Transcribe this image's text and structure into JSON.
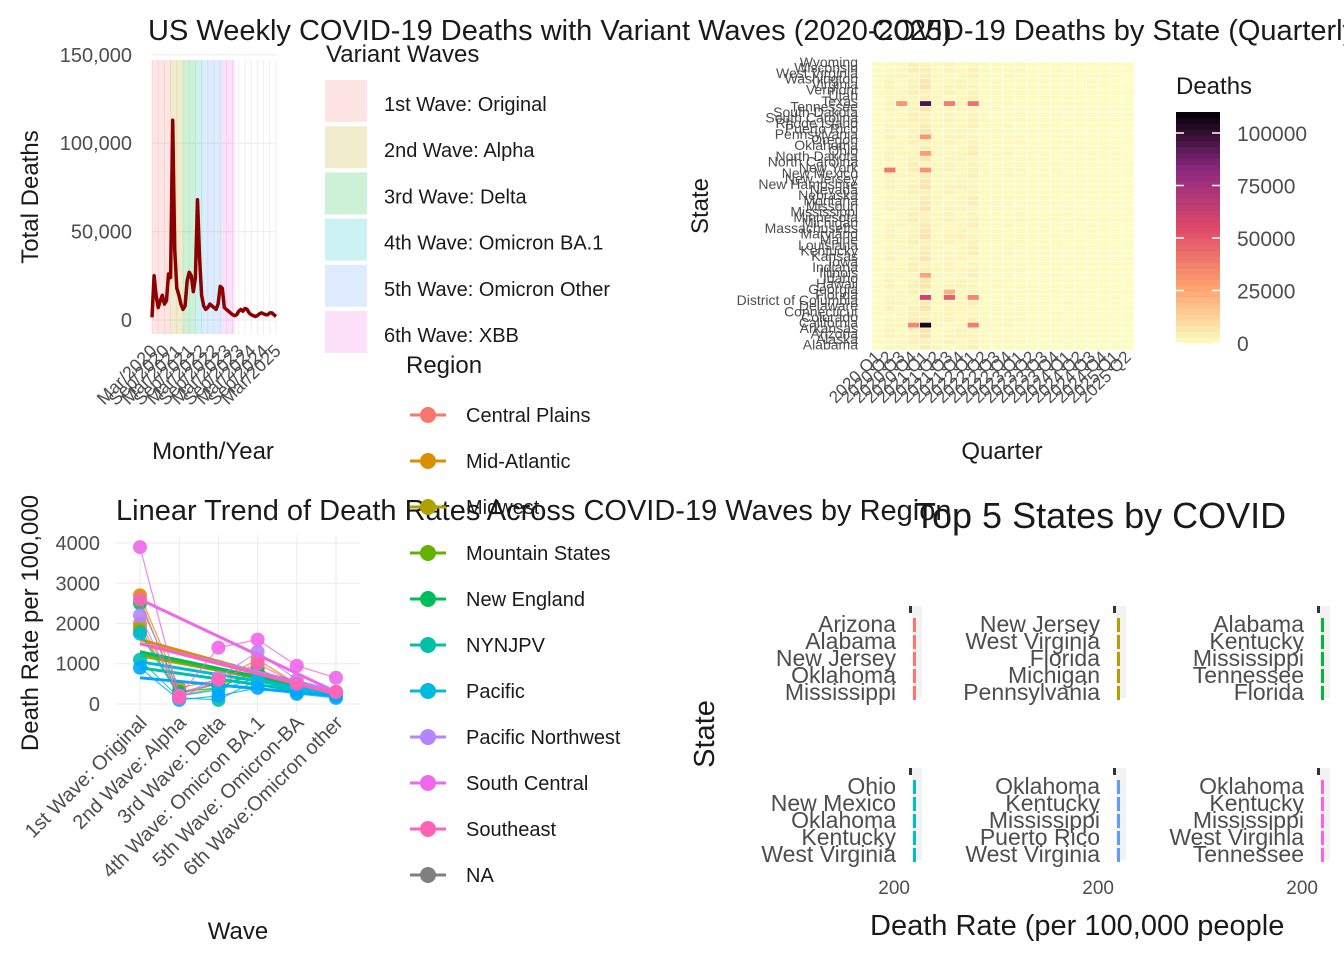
{
  "colors": {
    "death_line": "#8B0000",
    "grid": "#EBEBEB",
    "text": "#1A1A1A",
    "axis_text": "#4D4D4D",
    "heat_low": "#FCFDBF",
    "heat_mid1": "#FE9F6D",
    "heat_mid2": "#DE4968",
    "heat_mid3": "#8C2981",
    "heat_high": "#000004"
  },
  "chart_data": [
    {
      "type": "line",
      "title": "US Weekly COVID-19 Deaths with Variant Waves (2020-2025)",
      "xlabel": "Month/Year",
      "ylabel": "Total Deaths",
      "ylim": [
        0,
        155000
      ],
      "y_ticks": [
        "0",
        "50,000",
        "100,000",
        "150,000"
      ],
      "x_tick_labels": [
        "Mar/2020",
        "Sep/2020",
        "Mar/2021",
        "Sep/2021",
        "Mar/2022",
        "Sep/2022",
        "Mar/2023",
        "Sep/2023",
        "Mar/2024",
        "Sep/2024",
        "Mar/2025"
      ],
      "legend_title": "Variant Waves",
      "waves": [
        {
          "name": "1st Wave: Original",
          "color": "#F8766D",
          "start": "2020-03",
          "end": "2020-12"
        },
        {
          "name": "2nd Wave: Alpha",
          "color": "#B79F00",
          "start": "2020-12",
          "end": "2021-06"
        },
        {
          "name": "3rd Wave: Delta",
          "color": "#00BA38",
          "start": "2021-06",
          "end": "2021-12"
        },
        {
          "name": "4th Wave: Omicron BA.1",
          "color": "#00BFC4",
          "start": "2021-12",
          "end": "2022-04"
        },
        {
          "name": "5th Wave: Omicron Other",
          "color": "#619CFF",
          "start": "2022-04",
          "end": "2023-01"
        },
        {
          "name": "6th Wave: XBB",
          "color": "#F564E3",
          "start": "2023-01",
          "end": "2023-07"
        }
      ],
      "x": [
        "2020-03",
        "2020-04",
        "2020-05",
        "2020-06",
        "2020-07",
        "2020-08",
        "2020-09",
        "2020-10",
        "2020-11",
        "2020-12",
        "2021-01",
        "2021-02",
        "2021-03",
        "2021-04",
        "2021-05",
        "2021-06",
        "2021-07",
        "2021-08",
        "2021-09",
        "2021-10",
        "2021-11",
        "2021-12",
        "2022-01",
        "2022-02",
        "2022-03",
        "2022-04",
        "2022-05",
        "2022-06",
        "2022-07",
        "2022-08",
        "2022-09",
        "2022-10",
        "2022-11",
        "2022-12",
        "2023-01",
        "2023-02",
        "2023-03",
        "2023-04",
        "2023-05",
        "2023-06",
        "2023-07",
        "2023-08",
        "2023-09",
        "2023-10",
        "2023-11",
        "2023-12",
        "2024-01",
        "2024-02",
        "2024-03",
        "2024-04",
        "2024-05",
        "2024-06",
        "2024-07",
        "2024-08",
        "2024-09",
        "2024-10",
        "2024-11",
        "2024-12",
        "2025-01",
        "2025-02",
        "2025-03"
      ],
      "values": [
        1500,
        25000,
        14000,
        7000,
        11000,
        14000,
        9000,
        11000,
        26000,
        24000,
        113000,
        40000,
        18000,
        14000,
        9000,
        6000,
        8000,
        22000,
        27000,
        25000,
        16000,
        24000,
        68000,
        36000,
        14000,
        8000,
        6000,
        7000,
        9000,
        8000,
        7000,
        6000,
        9000,
        19000,
        18000,
        7000,
        6000,
        5000,
        4000,
        3000,
        2500,
        3000,
        5000,
        6000,
        5000,
        6500,
        6000,
        4000,
        3000,
        2500,
        2000,
        2500,
        3500,
        4000,
        3500,
        3000,
        3000,
        4000,
        4000,
        3000,
        2000
      ]
    },
    {
      "type": "heatmap",
      "title": "COVID-19 Deaths by State (Quarterly)",
      "xlabel": "Quarter",
      "ylabel": "State",
      "legend_title": "Deaths",
      "legend_ticks": [
        "0",
        "25000",
        "50000",
        "75000",
        "100000"
      ],
      "vmax": 110000,
      "x": [
        "2020 Q1",
        "2020 Q2",
        "2020 Q3",
        "2020 Q4",
        "2021 Q1",
        "2021 Q2",
        "2021 Q3",
        "2021 Q4",
        "2022 Q1",
        "2022 Q2",
        "2022 Q3",
        "2022 Q4",
        "2023 Q1",
        "2023 Q2",
        "2023 Q3",
        "2023 Q4",
        "2024 Q1",
        "2024 Q2",
        "2024 Q3",
        "2024 Q4",
        "2025 Q1",
        "2025 Q2"
      ],
      "states": [
        "Alabama",
        "Alaska",
        "Arizona",
        "Arkansas",
        "California",
        "Colorado",
        "Connecticut",
        "Delaware",
        "District of Columbia",
        "Florida",
        "Georgia",
        "Hawaii",
        "Idaho",
        "Illinois",
        "Indiana",
        "Iowa",
        "Kansas",
        "Kentucky",
        "Louisiana",
        "Maine",
        "Maryland",
        "Massachusetts",
        "Michigan",
        "Minnesota",
        "Mississippi",
        "Missouri",
        "Montana",
        "Nebraska",
        "Nevada",
        "New Hampshire",
        "New Jersey",
        "New Mexico",
        "New York",
        "North Carolina",
        "North Dakota",
        "Ohio",
        "Oklahoma",
        "Oregon",
        "Pennsylvania",
        "Puerto Rico",
        "Rhode Island",
        "South Carolina",
        "South Dakota",
        "Tennessee",
        "Texas",
        "Utah",
        "Vermont",
        "Virginia",
        "Washington",
        "West Virginia",
        "Wisconsin",
        "Wyoming"
      ],
      "hot_cells": [
        {
          "state": "California",
          "quarter": "2021 Q1",
          "value": 105000
        },
        {
          "state": "California",
          "quarter": "2020 Q4",
          "value": 35000
        },
        {
          "state": "California",
          "quarter": "2022 Q1",
          "value": 38000
        },
        {
          "state": "Texas",
          "quarter": "2021 Q1",
          "value": 95000
        },
        {
          "state": "Texas",
          "quarter": "2020 Q3",
          "value": 30000
        },
        {
          "state": "Texas",
          "quarter": "2021 Q3",
          "value": 38000
        },
        {
          "state": "Texas",
          "quarter": "2022 Q1",
          "value": 42000
        },
        {
          "state": "Florida",
          "quarter": "2021 Q1",
          "value": 60000
        },
        {
          "state": "Florida",
          "quarter": "2021 Q3",
          "value": 48000
        },
        {
          "state": "Florida",
          "quarter": "2022 Q1",
          "value": 35000
        },
        {
          "state": "New York",
          "quarter": "2020 Q2",
          "value": 40000
        },
        {
          "state": "New York",
          "quarter": "2021 Q1",
          "value": 32000
        },
        {
          "state": "Pennsylvania",
          "quarter": "2021 Q1",
          "value": 30000
        },
        {
          "state": "Illinois",
          "quarter": "2021 Q1",
          "value": 26000
        },
        {
          "state": "Ohio",
          "quarter": "2021 Q1",
          "value": 28000
        },
        {
          "state": "Georgia",
          "quarter": "2021 Q3",
          "value": 22000
        }
      ]
    },
    {
      "type": "line",
      "title": "Linear Trend of Death Rates Across COVID-19 Waves by Region",
      "xlabel": "Wave",
      "ylabel": "Death Rate per 100,000",
      "ylim": [
        -200,
        4200
      ],
      "y_ticks": [
        "0",
        "1000",
        "2000",
        "3000",
        "4000"
      ],
      "categories": [
        "1st Wave: Original",
        "2nd Wave: Alpha",
        "3rd Wave: Delta",
        "4th Wave: Omicron BA.1",
        "5th Wave: Omicron-BA",
        "6th Wave:Omicron other"
      ],
      "legend_title": "Region",
      "series": [
        {
          "name": "Central Plains",
          "color": "#F8766D",
          "values": [
            2000,
            300,
            500,
            900,
            400,
            250
          ],
          "trend": [
            1200,
            300
          ]
        },
        {
          "name": "Mid-Atlantic",
          "color": "#DB8E00",
          "values": [
            2700,
            400,
            600,
            1100,
            500,
            300
          ],
          "trend": [
            1600,
            250
          ]
        },
        {
          "name": "Midwest",
          "color": "#AEA200",
          "values": [
            1900,
            200,
            400,
            800,
            350,
            250
          ],
          "trend": [
            1200,
            280
          ]
        },
        {
          "name": "Mountain States",
          "color": "#64B200",
          "values": [
            1800,
            250,
            500,
            700,
            300,
            200
          ],
          "trend": [
            1250,
            270
          ]
        },
        {
          "name": "New England",
          "color": "#00BD5C",
          "values": [
            2500,
            300,
            400,
            850,
            350,
            220
          ],
          "trend": [
            1300,
            260
          ]
        },
        {
          "name": "NYNJPV",
          "color": "#00C1A7",
          "values": [
            1100,
            150,
            100,
            600,
            300,
            200
          ],
          "trend": [
            900,
            200
          ]
        },
        {
          "name": "Pacific",
          "color": "#00BADE",
          "values": [
            1750,
            200,
            350,
            650,
            350,
            200
          ],
          "trend": [
            1050,
            250
          ]
        },
        {
          "name": "Pacific Northwest",
          "color": "#00A6FF",
          "values": [
            900,
            100,
            200,
            400,
            250,
            150
          ],
          "trend": [
            650,
            200
          ]
        },
        {
          "name": "South Central",
          "color": "#B385FF",
          "values": [
            2200,
            200,
            650,
            1300,
            600,
            300
          ],
          "trend": [
            1500,
            320
          ]
        },
        {
          "name": "Southeast",
          "color": "#EF67EB",
          "values": [
            3900,
            200,
            1400,
            1600,
            950,
            650
          ],
          "trend": [
            2600,
            300
          ]
        },
        {
          "name": "NA",
          "color": "#FF63B6",
          "values": [
            2600,
            150,
            600,
            1000,
            500,
            300
          ],
          "trend": [
            1500,
            250
          ]
        }
      ],
      "legend_entries": [
        {
          "name": "Central Plains",
          "color": "#F8766D"
        },
        {
          "name": "Mid-Atlantic",
          "color": "#DB8E00"
        },
        {
          "name": "Midwest",
          "color": "#AEA200"
        },
        {
          "name": "Mountain States",
          "color": "#64B200"
        },
        {
          "name": "New England",
          "color": "#00BD5C"
        },
        {
          "name": "NYNJPV",
          "color": "#00C1A7"
        },
        {
          "name": "Pacific",
          "color": "#00BADE"
        },
        {
          "name": "Pacific Northwest",
          "color": "#B385FF"
        },
        {
          "name": "South Central",
          "color": "#EF67EB"
        },
        {
          "name": "Southeast",
          "color": "#FF63B6"
        },
        {
          "name": "NA",
          "color": "#7F7F7F"
        }
      ]
    },
    {
      "type": "bar",
      "title": "Top 5 States by COVID",
      "xlabel": "Death Rate (per 100,000 people",
      "ylabel": "State",
      "x_tick": "200",
      "facets": [
        {
          "color": "#F8766D",
          "states": [
            "Arizona",
            "Alabama",
            "New Jersey",
            "Oklahoma",
            "Mississippi"
          ]
        },
        {
          "color": "#B79F00",
          "states": [
            "New Jersey",
            "West Virginia",
            "Florida",
            "Michigan",
            "Pennsylvania"
          ]
        },
        {
          "color": "#00BA38",
          "states": [
            "Alabama",
            "Kentucky",
            "Mississippi",
            "Tennessee",
            "Florida"
          ]
        },
        {
          "color": "#00BFC4",
          "states": [
            "Ohio",
            "New Mexico",
            "Oklahoma",
            "Kentucky",
            "West Virginia"
          ]
        },
        {
          "color": "#619CFF",
          "states": [
            "Oklahoma",
            "Kentucky",
            "Mississippi",
            "Puerto Rico",
            "West Virginia"
          ]
        },
        {
          "color": "#F564E3",
          "states": [
            "Oklahoma",
            "Kentucky",
            "Mississippi",
            "West Virginia",
            "Tennessee"
          ]
        }
      ]
    }
  ]
}
